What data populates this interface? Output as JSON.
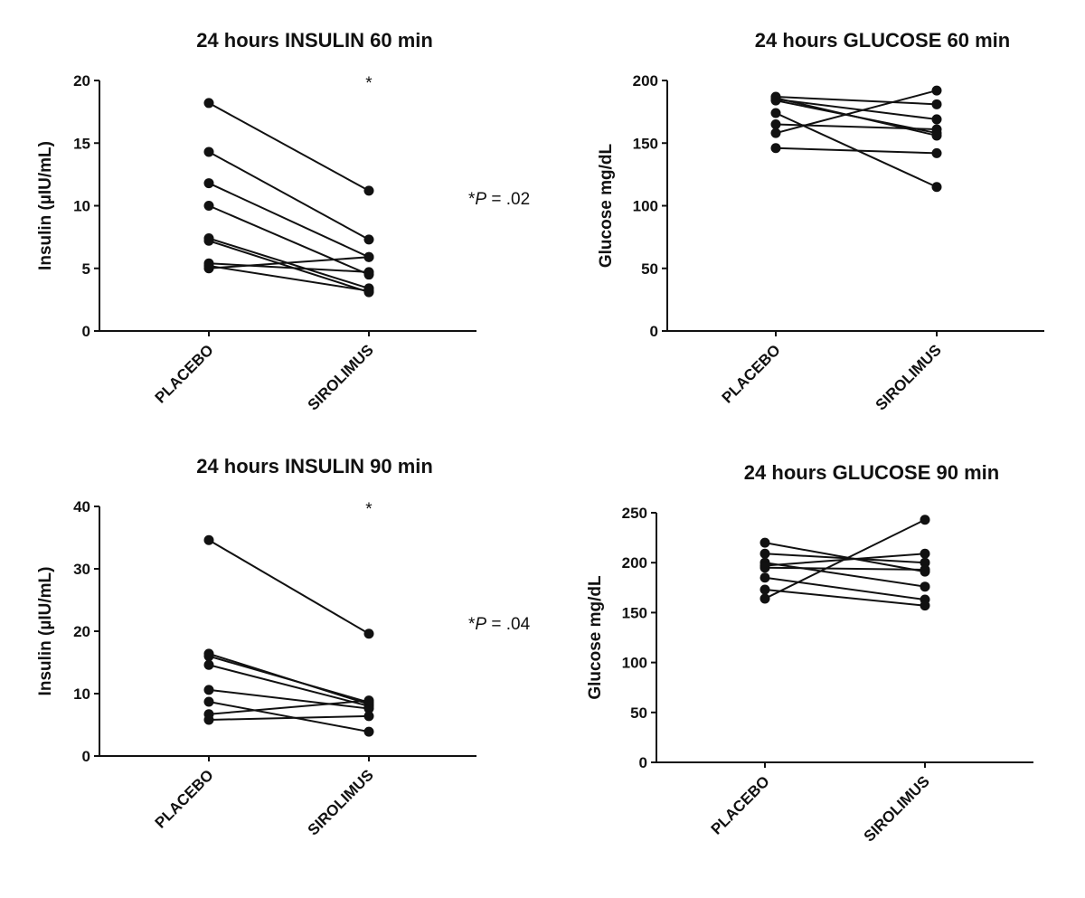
{
  "chart_data": [
    {
      "type": "line",
      "title": "24 hours INSULIN 60 min",
      "xlabel": "",
      "ylabel": "Insulin (µIU/mL)",
      "categories": [
        "PLACEBO",
        "SIROLIMUS"
      ],
      "ylim": [
        0,
        20
      ],
      "yticks": [
        0,
        5,
        10,
        15,
        20
      ],
      "significance_marker": "*",
      "annotation": {
        "prefix": "*",
        "p": "P",
        "rest": " = .02"
      },
      "series": [
        {
          "values": [
            18.2,
            11.2
          ]
        },
        {
          "values": [
            14.3,
            7.3
          ]
        },
        {
          "values": [
            11.8,
            5.9
          ]
        },
        {
          "values": [
            10.0,
            4.5
          ]
        },
        {
          "values": [
            7.4,
            3.4
          ]
        },
        {
          "values": [
            7.2,
            3.1
          ]
        },
        {
          "values": [
            5.4,
            4.7
          ]
        },
        {
          "values": [
            5.0,
            5.9
          ]
        },
        {
          "values": [
            5.2,
            3.2
          ]
        }
      ]
    },
    {
      "type": "line",
      "title": "24 hours GLUCOSE 60 min",
      "xlabel": "",
      "ylabel": "Glucose mg/dL",
      "categories": [
        "PLACEBO",
        "SIROLIMUS"
      ],
      "ylim": [
        0,
        200
      ],
      "yticks": [
        0,
        50,
        100,
        150,
        200
      ],
      "series": [
        {
          "values": [
            187,
            181
          ]
        },
        {
          "values": [
            185,
            169
          ]
        },
        {
          "values": [
            184,
            158
          ]
        },
        {
          "values": [
            174,
            115
          ]
        },
        {
          "values": [
            165,
            161
          ]
        },
        {
          "values": [
            158,
            192
          ]
        },
        {
          "values": [
            146,
            142
          ]
        },
        {
          "values": [
            186,
            156
          ]
        }
      ]
    },
    {
      "type": "line",
      "title": "24 hours INSULIN 90 min",
      "xlabel": "",
      "ylabel": "Insulin (µIU/mL)",
      "categories": [
        "PLACEBO",
        "SIROLIMUS"
      ],
      "ylim": [
        0,
        40
      ],
      "yticks": [
        0,
        10,
        20,
        30,
        40
      ],
      "significance_marker": "*",
      "annotation": {
        "prefix": "*",
        "p": "P",
        "rest": " = .04"
      },
      "series": [
        {
          "values": [
            34.6,
            19.6
          ]
        },
        {
          "values": [
            16.4,
            8.3
          ]
        },
        {
          "values": [
            16.0,
            8.6
          ]
        },
        {
          "values": [
            14.6,
            8.0
          ]
        },
        {
          "values": [
            10.6,
            7.6
          ]
        },
        {
          "values": [
            8.7,
            3.9
          ]
        },
        {
          "values": [
            6.7,
            8.9
          ]
        },
        {
          "values": [
            5.8,
            6.4
          ]
        }
      ]
    },
    {
      "type": "line",
      "title": "24 hours GLUCOSE 90 min",
      "xlabel": "",
      "ylabel": "Glucose mg/dL",
      "categories": [
        "PLACEBO",
        "SIROLIMUS"
      ],
      "ylim": [
        0,
        250
      ],
      "yticks": [
        0,
        50,
        100,
        150,
        200,
        250
      ],
      "series": [
        {
          "values": [
            220,
            191
          ]
        },
        {
          "values": [
            209,
            200
          ]
        },
        {
          "values": [
            200,
            176
          ]
        },
        {
          "values": [
            197,
            209
          ]
        },
        {
          "values": [
            195,
            193
          ]
        },
        {
          "values": [
            185,
            163
          ]
        },
        {
          "values": [
            173,
            157
          ]
        },
        {
          "values": [
            164,
            243
          ]
        }
      ]
    }
  ]
}
